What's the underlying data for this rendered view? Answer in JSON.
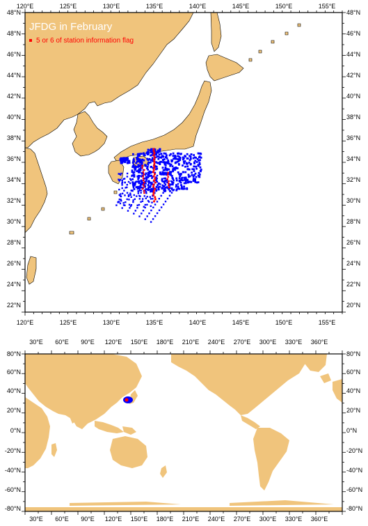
{
  "title": "JFDG in February",
  "legend": {
    "label": "5 or 6 of station information flag",
    "color": "#ff0000"
  },
  "colors": {
    "land": "#f0c47c",
    "ocean": "#ffffff",
    "station": "#0000ff",
    "flagged": "#ff0000",
    "frame": "#000000"
  },
  "top_map": {
    "lon_labels": [
      "120°E",
      "125°E",
      "130°E",
      "135°E",
      "140°E",
      "145°E",
      "150°E",
      "155°E"
    ],
    "lat_labels": [
      "48°N",
      "46°N",
      "44°N",
      "42°N",
      "40°N",
      "38°N",
      "36°N",
      "34°N",
      "32°N",
      "30°N",
      "28°N",
      "26°N",
      "24°N",
      "22°N",
      "20°N"
    ],
    "lon_range": [
      120,
      157
    ],
    "lat_range": [
      19,
      48
    ]
  },
  "bottom_map": {
    "lon_labels": [
      "30°E",
      "60°E",
      "90°E",
      "120°E",
      "150°E",
      "180°E",
      "210°E",
      "240°E",
      "270°E",
      "300°E",
      "330°E",
      "360°E"
    ],
    "lat_labels": [
      "80°N",
      "60°N",
      "40°N",
      "20°N",
      "0°N",
      "-20°N",
      "-40°N",
      "-60°N",
      "-80°N"
    ],
    "lon_range": [
      20,
      370
    ],
    "lat_range": [
      -80,
      80
    ]
  }
}
